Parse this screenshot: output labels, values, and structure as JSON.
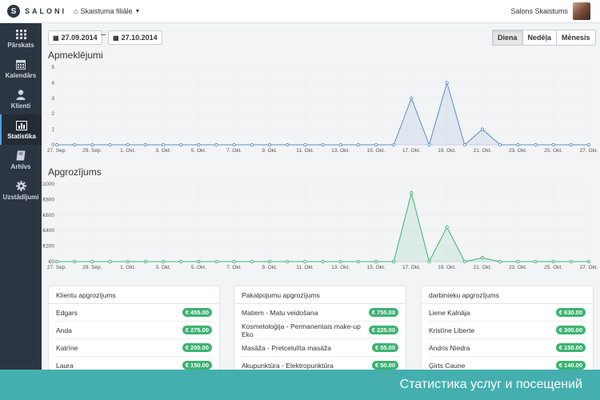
{
  "header": {
    "logo_mark": "S",
    "logo_text": "SALONI",
    "branch": "Skaistuma filiāle",
    "user_name": "Salons Skaistums"
  },
  "sidebar": {
    "items": [
      {
        "label": "Pārskats",
        "icon": "grid-icon"
      },
      {
        "label": "Kalendārs",
        "icon": "calendar-icon"
      },
      {
        "label": "Klienti",
        "icon": "user-icon"
      },
      {
        "label": "Statistika",
        "icon": "bar-chart-icon"
      },
      {
        "label": "Arhīvs",
        "icon": "book-icon"
      },
      {
        "label": "Uzstādījumi",
        "icon": "gear-icon"
      }
    ],
    "active": "Statistika"
  },
  "filters": {
    "date_from": "27.09.2014",
    "date_to": "27.10.2014",
    "ranges": [
      "Diena",
      "Nedēļa",
      "Mēnesis"
    ],
    "active_range": "Diena"
  },
  "sections": {
    "visits_title": "Apmeklējumi",
    "revenue_title": "Apgrozījums"
  },
  "chart_data": [
    {
      "type": "area",
      "title": "Apmeklējumi",
      "x_tick_labels": [
        "27. Sep.",
        "29. Sep.",
        "1. Okt.",
        "3. Okt.",
        "5. Okt.",
        "7. Okt.",
        "9. Okt.",
        "11. Okt.",
        "13. Okt.",
        "15. Okt.",
        "17. Okt.",
        "19. Okt.",
        "21. Okt.",
        "23. Okt.",
        "25. Okt.",
        "27. Okt."
      ],
      "y_tick_labels": [
        "0",
        "1",
        "2",
        "3",
        "4",
        "5"
      ],
      "ylim": [
        0,
        5
      ],
      "color": "#5b8fc7",
      "values": [
        0,
        0,
        0,
        0,
        0,
        0,
        0,
        0,
        0,
        0,
        0,
        0,
        0,
        0,
        0,
        0,
        0,
        0,
        0,
        0,
        3,
        0,
        4,
        0,
        1,
        0,
        0,
        0,
        0,
        0,
        0
      ]
    },
    {
      "type": "area",
      "title": "Apgrozījums",
      "x_tick_labels": [
        "27. Sep.",
        "29. Sep.",
        "1. Okt.",
        "3. Okt.",
        "5. Okt.",
        "7. Okt.",
        "9. Okt.",
        "11. Okt.",
        "13. Okt.",
        "15. Okt.",
        "17. Okt.",
        "19. Okt.",
        "21. Okt.",
        "23. Okt.",
        "25. Okt.",
        "27. Okt."
      ],
      "y_tick_labels": [
        "€0",
        "€200",
        "€400",
        "€600",
        "€800",
        "€1000"
      ],
      "ylim": [
        0,
        1000
      ],
      "color": "#3cb371",
      "values": [
        0,
        0,
        0,
        0,
        0,
        0,
        0,
        0,
        0,
        0,
        0,
        0,
        0,
        0,
        0,
        0,
        0,
        0,
        0,
        0,
        885,
        0,
        445,
        0,
        50,
        0,
        0,
        0,
        0,
        0,
        0
      ]
    }
  ],
  "panels": [
    {
      "title": "Klientu apgrozījums",
      "rows": [
        {
          "name": "Edgars",
          "value": "€ 455.00"
        },
        {
          "name": "Anda",
          "value": "€ 275.00"
        },
        {
          "name": "Katrīne",
          "value": "€ 200.00"
        },
        {
          "name": "Laura",
          "value": "€ 150.00"
        }
      ]
    },
    {
      "title": "Pakalpojumu apgrozījums",
      "rows": [
        {
          "name": "Matiem - Matu veidošana",
          "value": "€ 755.00"
        },
        {
          "name": "Kosmetoloģija - Permanentais make-up Eko",
          "value": "€ 225.00"
        },
        {
          "name": "Masāža - Pretcelulīta masāža",
          "value": "€ 55.00"
        },
        {
          "name": "Akupunktūra - Elektropunktūra",
          "value": "€ 50.00"
        }
      ]
    },
    {
      "title": "darbinieku apgrozījums",
      "rows": [
        {
          "name": "Liene Kalnāja",
          "value": "€ 630.00"
        },
        {
          "name": "Kristīne Liberte",
          "value": "€ 300.00"
        },
        {
          "name": "Andris Niedra",
          "value": "€ 150.00"
        },
        {
          "name": "Ģirts Caune",
          "value": "€ 140.00"
        }
      ]
    }
  ],
  "banner": {
    "text": "Статистика услуг и посещений"
  }
}
